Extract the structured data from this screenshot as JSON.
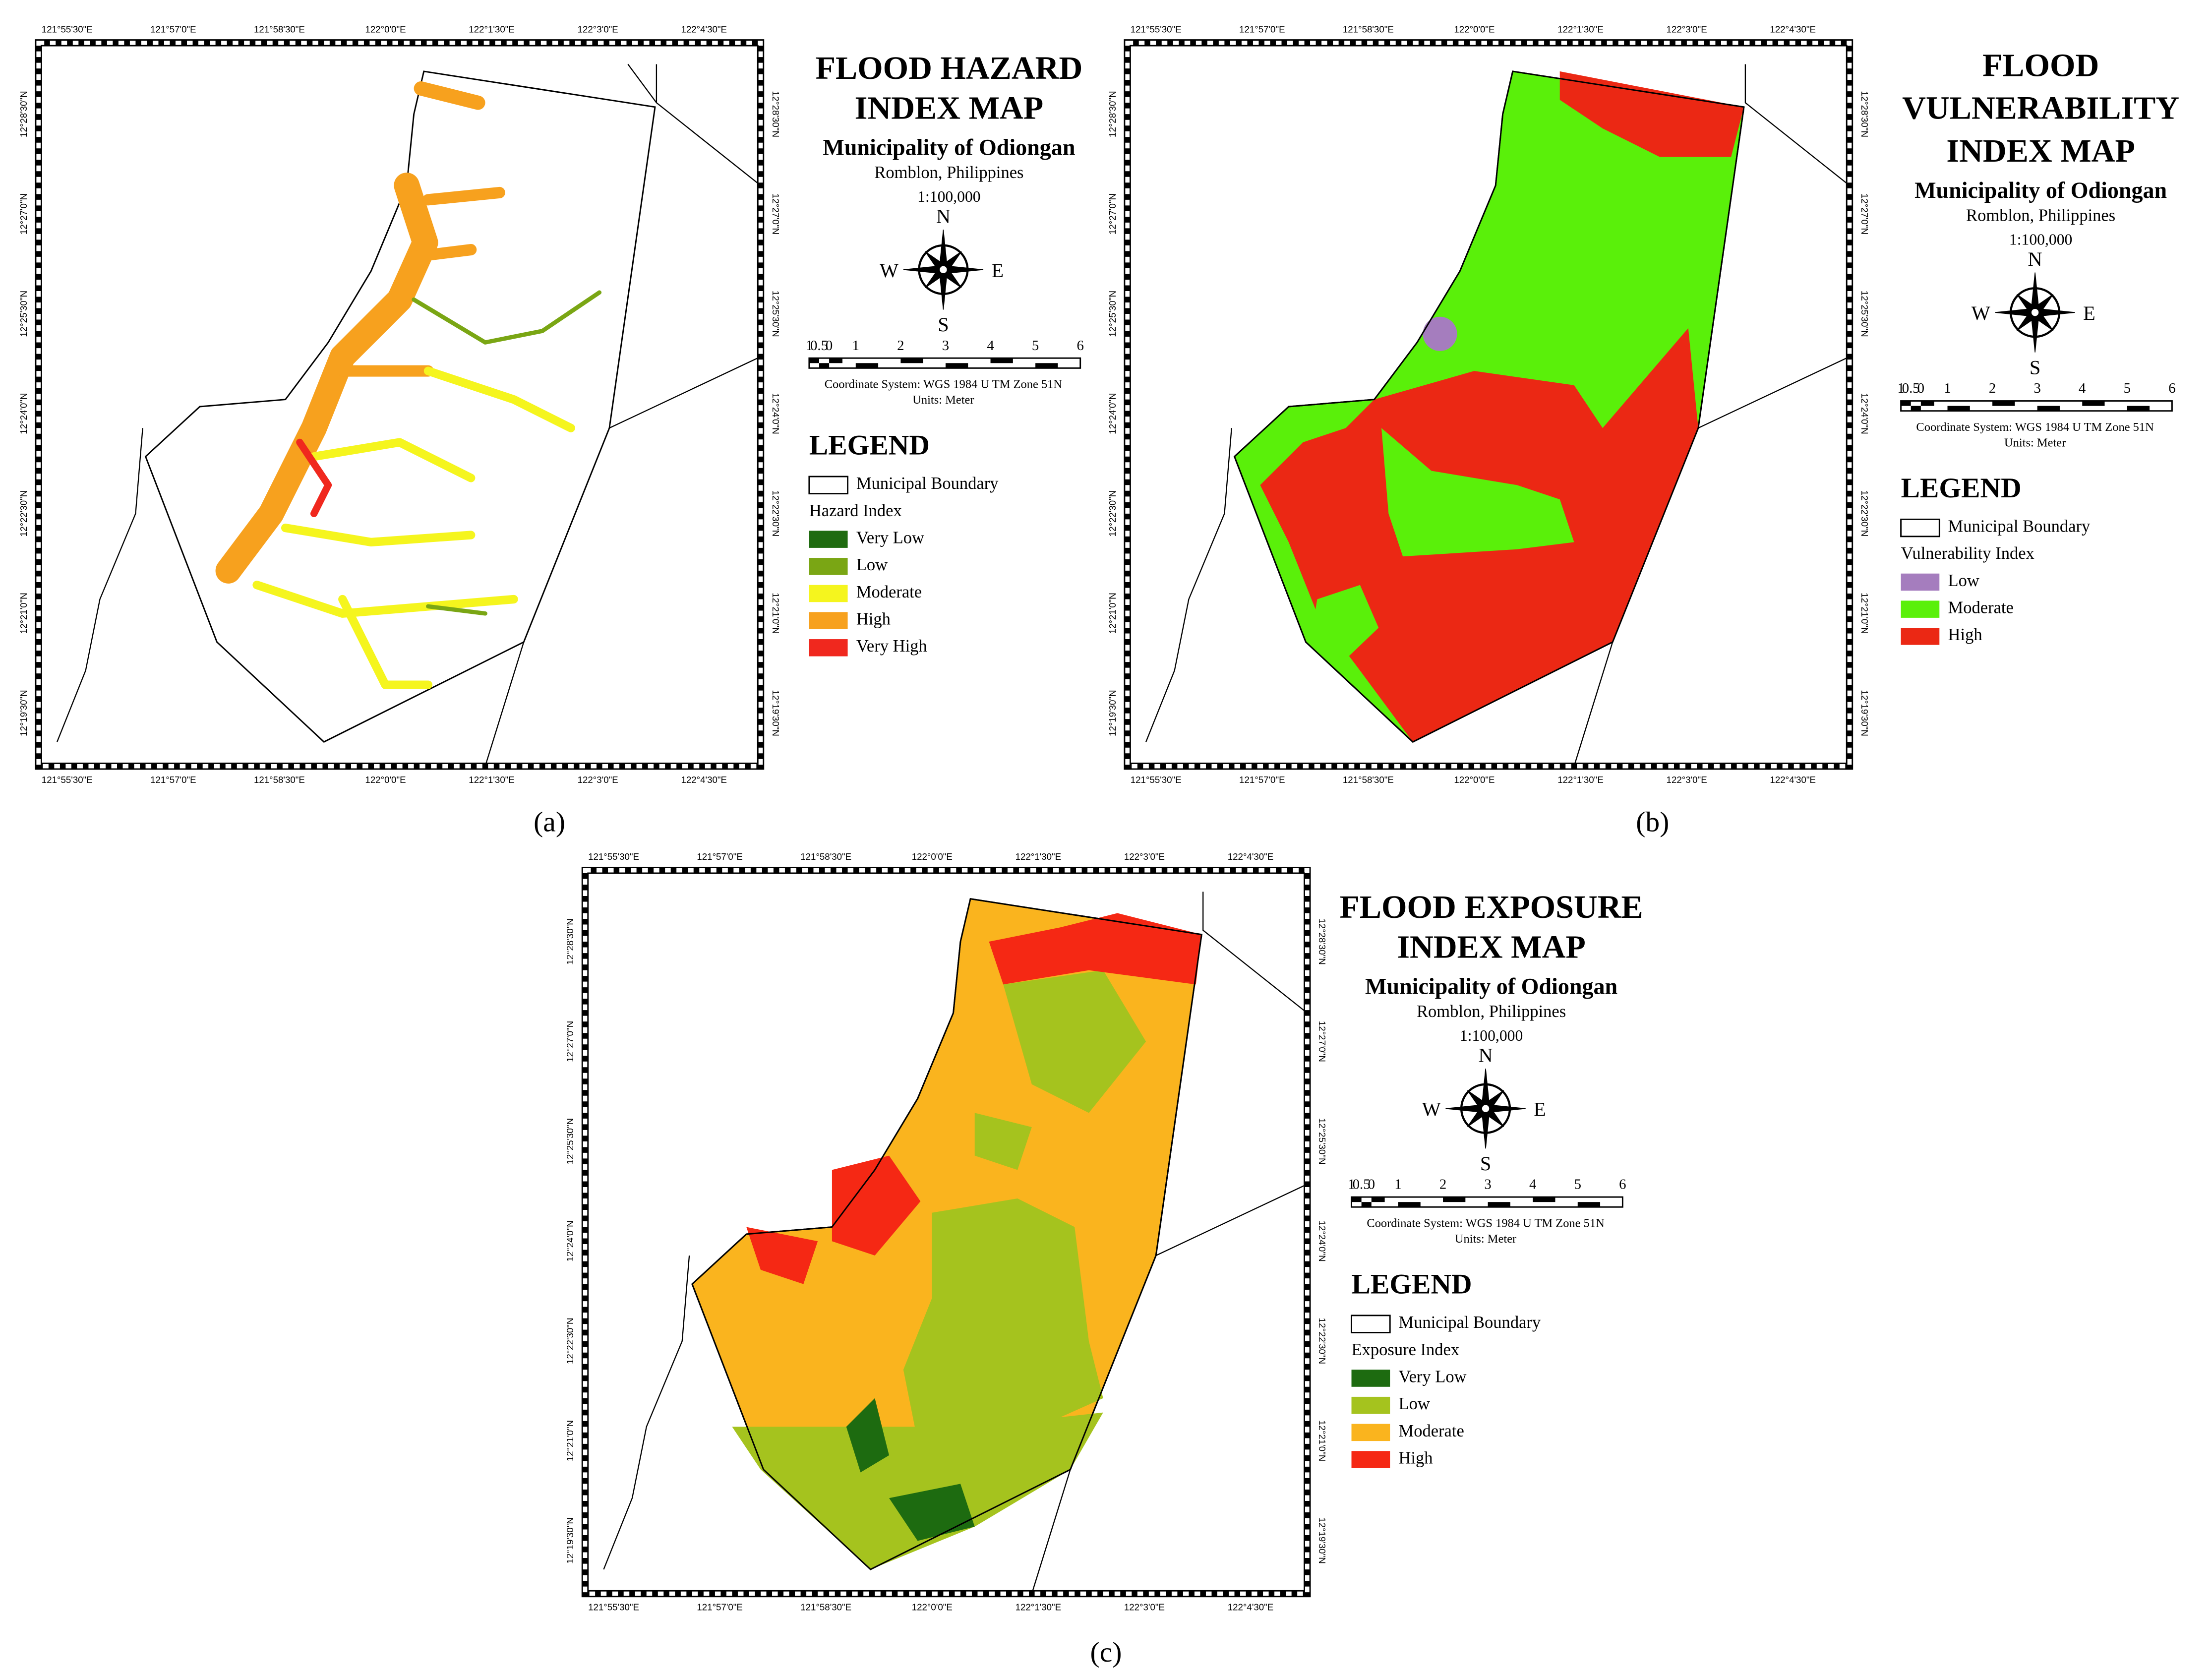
{
  "lon_labels": [
    "121°55'30\"E",
    "121°57'0\"E",
    "121°58'30\"E",
    "122°0'0\"E",
    "122°1'30\"E",
    "122°3'0\"E",
    "122°4'30\"E"
  ],
  "lat_labels": [
    "12°28'30\"N",
    "12°27'0\"N",
    "12°25'30\"N",
    "12°24'0\"N",
    "12°22'30\"N",
    "12°21'0\"N",
    "12°19'30\"N"
  ],
  "panels": [
    {
      "caption": "(a)",
      "title": [
        "FLOOD HAZARD",
        "INDEX MAP"
      ],
      "municipality": "Municipality of Odiongan",
      "location": "Romblon, Philippines",
      "scale": "1:100,000",
      "compass": {
        "n": "N",
        "e": "E",
        "s": "S",
        "w": "W"
      },
      "scalebar": [
        "1",
        "0.5",
        "0",
        "1",
        "2",
        "3",
        "4",
        "5",
        "6"
      ],
      "coordinate_system": "Coordinate System: WGS 1984 U TM Zone 51N",
      "units": "Units: Meter",
      "legend_title": "LEGEND",
      "boundary_label": "Municipal Boundary",
      "index_label": "Hazard Index",
      "legend": [
        {
          "label": "Very Low",
          "color": "#1f6b10"
        },
        {
          "label": "Low",
          "color": "#7aa614"
        },
        {
          "label": "Moderate",
          "color": "#f5f51e"
        },
        {
          "label": "High",
          "color": "#f7a11e"
        },
        {
          "label": "Very High",
          "color": "#f0281e"
        }
      ]
    },
    {
      "caption": "(b)",
      "title": [
        "FLOOD",
        "VULNERABILITY",
        "INDEX MAP"
      ],
      "municipality": "Municipality of Odiongan",
      "location": "Romblon, Philippines",
      "scale": "1:100,000",
      "compass": {
        "n": "N",
        "e": "E",
        "s": "S",
        "w": "W"
      },
      "scalebar": [
        "1",
        "0.5",
        "0",
        "1",
        "2",
        "3",
        "4",
        "5",
        "6"
      ],
      "coordinate_system": "Coordinate System: WGS 1984 U TM Zone 51N",
      "units": "Units: Meter",
      "legend_title": "LEGEND",
      "boundary_label": "Municipal Boundary",
      "index_label": "Vulnerability Index",
      "legend": [
        {
          "label": "Low",
          "color": "#a57dbe"
        },
        {
          "label": "Moderate",
          "color": "#5af00a"
        },
        {
          "label": "High",
          "color": "#eb2814"
        }
      ]
    },
    {
      "caption": "(c)",
      "title": [
        "FLOOD EXPOSURE",
        "INDEX MAP"
      ],
      "municipality": "Municipality of Odiongan",
      "location": "Romblon, Philippines",
      "scale": "1:100,000",
      "compass": {
        "n": "N",
        "e": "E",
        "s": "S",
        "w": "W"
      },
      "scalebar": [
        "1",
        "0.5",
        "0",
        "1",
        "2",
        "3",
        "4",
        "5",
        "6"
      ],
      "coordinate_system": "Coordinate System: WGS 1984 U TM Zone 51N",
      "units": "Units: Meter",
      "legend_title": "LEGEND",
      "boundary_label": "Municipal Boundary",
      "index_label": "Exposure Index",
      "legend": [
        {
          "label": "Very Low",
          "color": "#1d6b10"
        },
        {
          "label": "Low",
          "color": "#a5c31e"
        },
        {
          "label": "Moderate",
          "color": "#fab41e"
        },
        {
          "label": "High",
          "color": "#f52814"
        }
      ]
    }
  ]
}
